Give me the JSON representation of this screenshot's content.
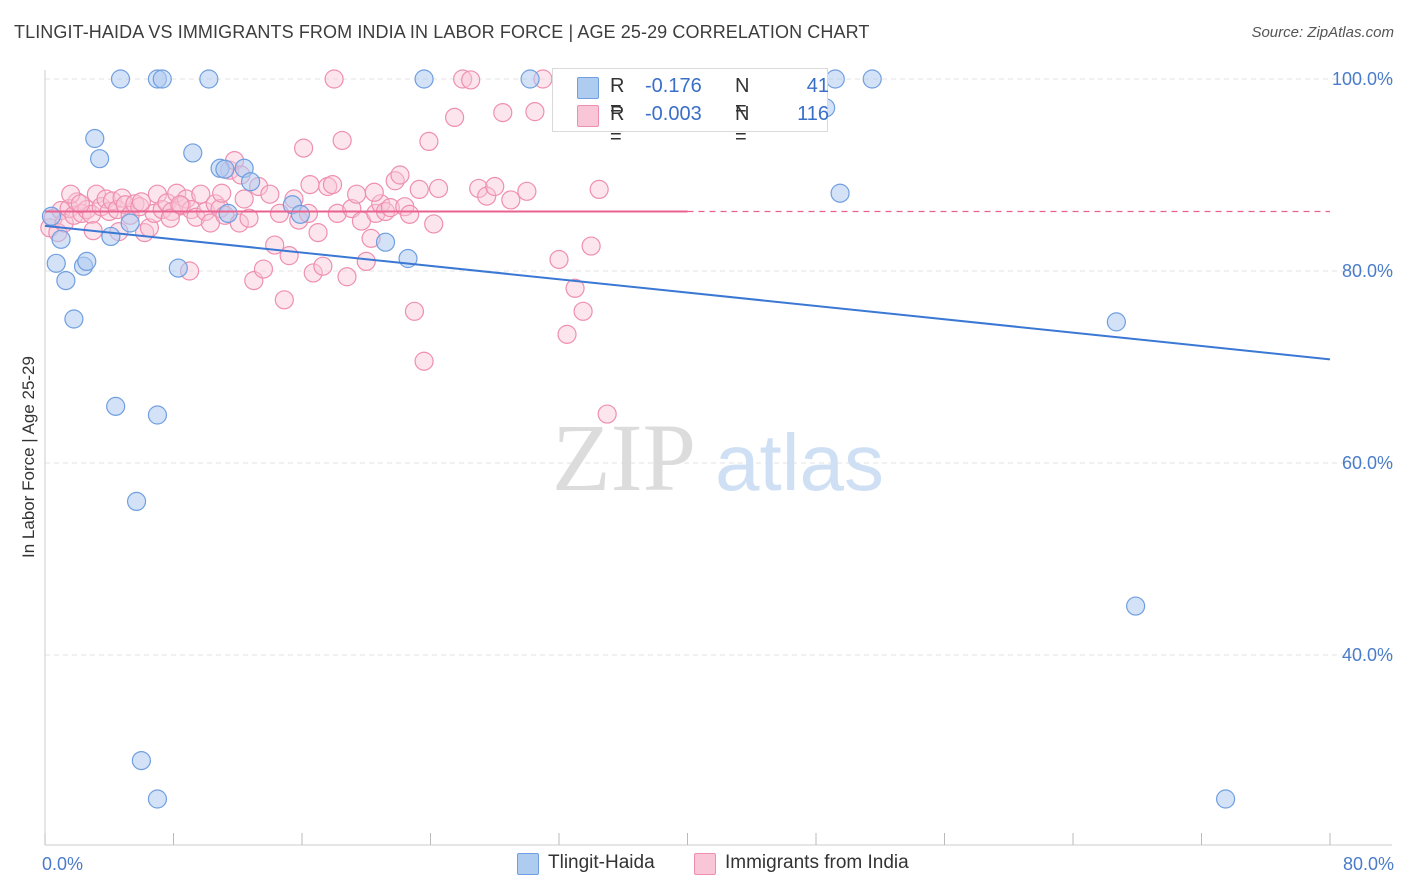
{
  "header": {
    "title": "TLINGIT-HAIDA VS IMMIGRANTS FROM INDIA IN LABOR FORCE | AGE 25-29 CORRELATION CHART",
    "source": "Source: ZipAtlas.com"
  },
  "watermark": {
    "zip": "ZIP",
    "atlas": "atlas"
  },
  "legend": {
    "series": [
      {
        "r_label": "R =",
        "r_value": "-0.176",
        "n_label": "N =",
        "n_value": "41",
        "fill": "#aecbf0",
        "stroke": "#6f9fe0"
      },
      {
        "r_label": "R =",
        "r_value": "-0.003",
        "n_label": "N =",
        "n_value": "116",
        "fill": "#f8c6d6",
        "stroke": "#ef8fb0"
      }
    ]
  },
  "bottom_legend": {
    "tlingit": "Tlingit-Haida",
    "india": "Immigrants from India"
  },
  "chart_data": {
    "type": "scatter",
    "title": "TLINGIT-HAIDA VS IMMIGRANTS FROM INDIA IN LABOR FORCE | AGE 25-29 CORRELATION CHART",
    "ylabel": "In Labor Force | Age 25-29",
    "xlim": [
      0,
      80
    ],
    "ylim": [
      20,
      102
    ],
    "x_tick_labels": [
      {
        "value": 0,
        "label": "0.0%"
      },
      {
        "value": 80,
        "label": "80.0%"
      }
    ],
    "y_tick_labels": [
      {
        "value": 100,
        "label": "100.0%"
      },
      {
        "value": 80,
        "label": "80.0%"
      },
      {
        "value": 60,
        "label": "60.0%"
      },
      {
        "value": 40,
        "label": "40.0%"
      }
    ],
    "grid": true,
    "series": [
      {
        "name": "Tlingit-Haida",
        "color": "#6f9fe0",
        "fill": "#aecbf0",
        "trend": {
          "x": [
            0,
            80
          ],
          "y": [
            84.7,
            70.8
          ]
        },
        "points": [
          [
            0.4,
            85.7
          ],
          [
            0.7,
            80.8
          ],
          [
            1.0,
            83.3
          ],
          [
            1.3,
            79.0
          ],
          [
            1.8,
            75.0
          ],
          [
            2.4,
            80.5
          ],
          [
            2.6,
            81.0
          ],
          [
            3.1,
            93.8
          ],
          [
            3.4,
            91.7
          ],
          [
            4.1,
            83.6
          ],
          [
            4.4,
            65.9
          ],
          [
            4.7,
            100.0
          ],
          [
            5.3,
            85.0
          ],
          [
            5.7,
            56.0
          ],
          [
            6.0,
            29.0
          ],
          [
            7.0,
            100.0
          ],
          [
            7.3,
            100.0
          ],
          [
            7.0,
            65.0
          ],
          [
            7.0,
            25.0
          ],
          [
            8.3,
            80.3
          ],
          [
            9.2,
            92.3
          ],
          [
            10.2,
            100.0
          ],
          [
            10.9,
            90.7
          ],
          [
            11.2,
            90.6
          ],
          [
            11.4,
            86.0
          ],
          [
            12.4,
            90.7
          ],
          [
            12.8,
            89.3
          ],
          [
            15.4,
            86.9
          ],
          [
            15.9,
            85.9
          ],
          [
            21.2,
            83.0
          ],
          [
            22.6,
            81.3
          ],
          [
            23.6,
            100.0
          ],
          [
            30.2,
            100.0
          ],
          [
            36.2,
            100.0
          ],
          [
            48.6,
            97.0
          ],
          [
            49.2,
            100.0
          ],
          [
            51.5,
            100.0
          ],
          [
            49.5,
            88.1
          ],
          [
            66.7,
            74.7
          ],
          [
            67.9,
            45.1
          ],
          [
            73.5,
            25.0
          ]
        ]
      },
      {
        "name": "Immigrants from India",
        "color": "#ef8fb0",
        "fill": "#f8c6d6",
        "trend": {
          "x": [
            0,
            40
          ],
          "y": [
            86.2,
            86.2
          ],
          "dashed_to": 80
        },
        "points": [
          [
            0.3,
            84.5
          ],
          [
            0.5,
            85.5
          ],
          [
            0.8,
            84.0
          ],
          [
            1.0,
            86.3
          ],
          [
            1.2,
            85.0
          ],
          [
            1.5,
            86.5
          ],
          [
            1.8,
            85.8
          ],
          [
            2.0,
            87.2
          ],
          [
            2.3,
            86.0
          ],
          [
            2.6,
            86.4
          ],
          [
            2.9,
            85.9
          ],
          [
            3.2,
            88.0
          ],
          [
            3.5,
            86.7
          ],
          [
            3.8,
            87.5
          ],
          [
            4.0,
            86.2
          ],
          [
            4.2,
            87.3
          ],
          [
            4.5,
            86.4
          ],
          [
            4.8,
            87.6
          ],
          [
            5.0,
            86.9
          ],
          [
            5.3,
            85.8
          ],
          [
            5.6,
            87.0
          ],
          [
            5.9,
            86.7
          ],
          [
            6.2,
            84.0
          ],
          [
            6.5,
            84.5
          ],
          [
            6.8,
            86.0
          ],
          [
            7.0,
            88.0
          ],
          [
            7.3,
            86.4
          ],
          [
            7.6,
            87.1
          ],
          [
            7.9,
            86.2
          ],
          [
            8.2,
            88.1
          ],
          [
            8.5,
            86.8
          ],
          [
            8.8,
            87.5
          ],
          [
            9.1,
            86.4
          ],
          [
            9.4,
            85.6
          ],
          [
            9.7,
            88.0
          ],
          [
            10.0,
            86.2
          ],
          [
            10.3,
            85.0
          ],
          [
            10.6,
            87.0
          ],
          [
            10.9,
            86.5
          ],
          [
            11.2,
            85.8
          ],
          [
            11.5,
            90.5
          ],
          [
            11.8,
            91.5
          ],
          [
            12.1,
            85.0
          ],
          [
            12.4,
            87.5
          ],
          [
            12.7,
            85.5
          ],
          [
            13.0,
            79.0
          ],
          [
            13.3,
            88.8
          ],
          [
            13.6,
            80.2
          ],
          [
            14.0,
            88.0
          ],
          [
            14.3,
            82.7
          ],
          [
            14.6,
            86.0
          ],
          [
            14.9,
            77.0
          ],
          [
            15.2,
            81.6
          ],
          [
            15.5,
            87.5
          ],
          [
            15.8,
            85.3
          ],
          [
            16.1,
            92.8
          ],
          [
            16.4,
            86.0
          ],
          [
            16.7,
            79.8
          ],
          [
            17.0,
            84.0
          ],
          [
            17.3,
            80.5
          ],
          [
            17.6,
            88.8
          ],
          [
            17.9,
            89.0
          ],
          [
            18.2,
            86.0
          ],
          [
            18.5,
            93.6
          ],
          [
            18.8,
            79.4
          ],
          [
            19.1,
            86.5
          ],
          [
            19.4,
            88.0
          ],
          [
            19.7,
            85.2
          ],
          [
            20.0,
            81.0
          ],
          [
            20.3,
            83.4
          ],
          [
            20.6,
            86.0
          ],
          [
            20.9,
            87.0
          ],
          [
            21.2,
            86.2
          ],
          [
            21.5,
            86.6
          ],
          [
            21.8,
            89.4
          ],
          [
            22.1,
            90.0
          ],
          [
            22.4,
            86.7
          ],
          [
            22.7,
            85.9
          ],
          [
            23.0,
            75.8
          ],
          [
            23.3,
            88.5
          ],
          [
            23.6,
            70.6
          ],
          [
            23.9,
            93.5
          ],
          [
            24.2,
            84.9
          ],
          [
            24.5,
            88.6
          ],
          [
            25.5,
            96.0
          ],
          [
            26.0,
            100.0
          ],
          [
            27.0,
            88.6
          ],
          [
            27.5,
            87.8
          ],
          [
            28.0,
            88.8
          ],
          [
            29.0,
            87.4
          ],
          [
            30.0,
            88.3
          ],
          [
            31.0,
            100.0
          ],
          [
            32.0,
            81.2
          ],
          [
            32.5,
            73.4
          ],
          [
            33.0,
            78.2
          ],
          [
            33.5,
            75.8
          ],
          [
            34.0,
            82.6
          ],
          [
            35.0,
            65.1
          ],
          [
            36.0,
            100.0
          ],
          [
            28.5,
            96.5
          ],
          [
            18.0,
            100.0
          ],
          [
            34.5,
            88.5
          ],
          [
            26.5,
            99.9
          ],
          [
            30.5,
            96.6
          ],
          [
            20.5,
            88.2
          ],
          [
            16.5,
            89.0
          ],
          [
            12.2,
            90.0
          ],
          [
            9.0,
            80.0
          ],
          [
            7.8,
            85.5
          ],
          [
            3.0,
            84.2
          ],
          [
            1.6,
            88.0
          ],
          [
            2.2,
            87.0
          ],
          [
            4.6,
            84.1
          ],
          [
            6.0,
            87.2
          ],
          [
            8.4,
            86.9
          ],
          [
            11.0,
            88.1
          ]
        ]
      }
    ]
  }
}
